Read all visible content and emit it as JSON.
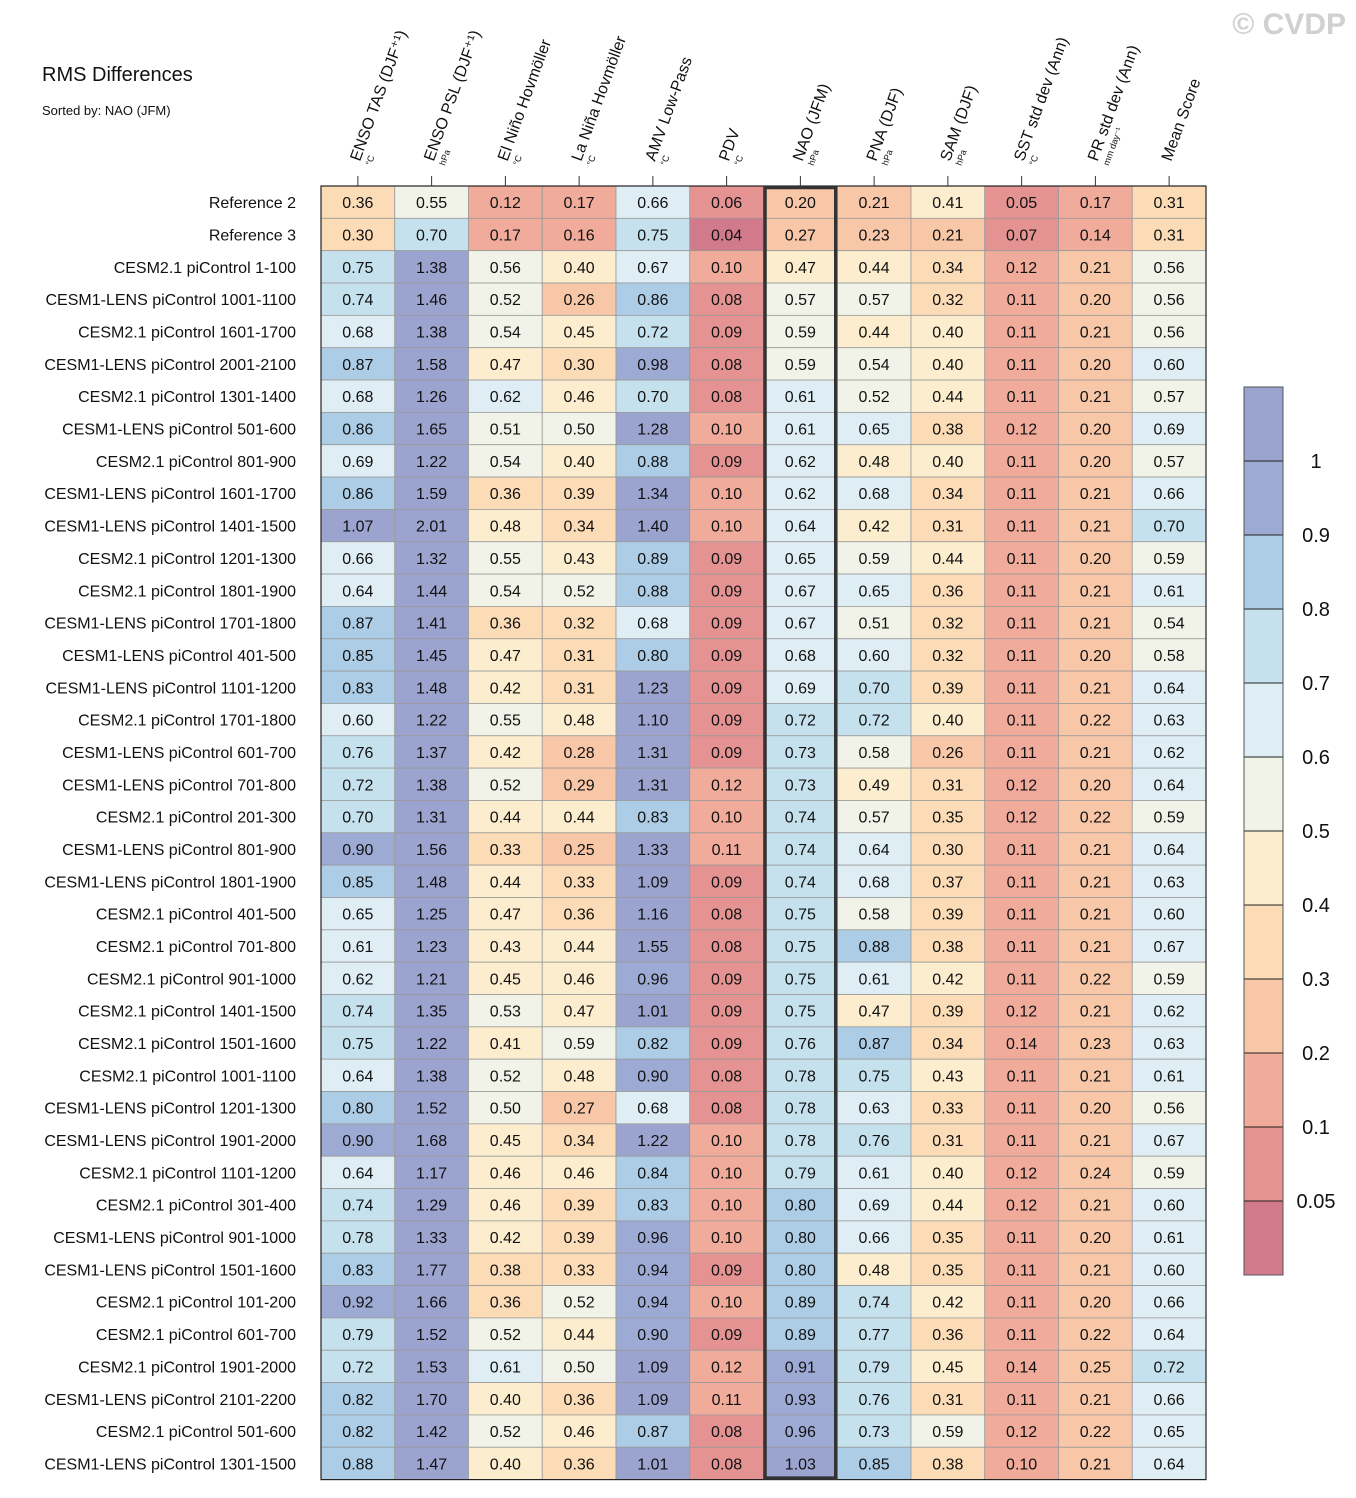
{
  "chart_data": {
    "type": "heatmap",
    "title": "RMS Differences",
    "subtitle": "Sorted by: NAO (JFM)",
    "watermark": "© CVDP",
    "highlight_column": 6,
    "columns": [
      {
        "label": "ENSO TAS (DJF⁺¹)",
        "unit": "°C"
      },
      {
        "label": "ENSO PSL (DJF⁺¹)",
        "unit": "hPa"
      },
      {
        "label": "El Niño Hovmöller",
        "unit": "°C"
      },
      {
        "label": "La Niña Hovmöller",
        "unit": "°C"
      },
      {
        "label": "AMV Low-Pass",
        "unit": "°C"
      },
      {
        "label": "PDV",
        "unit": "°C"
      },
      {
        "label": "NAO (JFM)",
        "unit": "hPa"
      },
      {
        "label": "PNA (DJF)",
        "unit": "hPa"
      },
      {
        "label": "SAM (DJF)",
        "unit": "hPa"
      },
      {
        "label": "SST std dev (Ann)",
        "unit": "°C"
      },
      {
        "label": "PR std dev (Ann)",
        "unit": "mm day⁻¹"
      },
      {
        "label": "Mean Score",
        "unit": ""
      }
    ],
    "rows": [
      {
        "name": "Reference 2",
        "values": [
          0.36,
          0.55,
          0.12,
          0.17,
          0.66,
          0.06,
          0.2,
          0.21,
          0.41,
          0.05,
          0.17,
          0.31
        ]
      },
      {
        "name": "Reference 3",
        "values": [
          0.3,
          0.7,
          0.17,
          0.16,
          0.75,
          0.04,
          0.27,
          0.23,
          0.21,
          0.07,
          0.14,
          0.31
        ]
      },
      {
        "name": "CESM2.1 piControl 1-100",
        "values": [
          0.75,
          1.38,
          0.56,
          0.4,
          0.67,
          0.1,
          0.47,
          0.44,
          0.34,
          0.12,
          0.21,
          0.56
        ]
      },
      {
        "name": "CESM1-LENS piControl 1001-1100",
        "values": [
          0.74,
          1.46,
          0.52,
          0.26,
          0.86,
          0.08,
          0.57,
          0.57,
          0.32,
          0.11,
          0.2,
          0.56
        ]
      },
      {
        "name": "CESM2.1 piControl 1601-1700",
        "values": [
          0.68,
          1.38,
          0.54,
          0.45,
          0.72,
          0.09,
          0.59,
          0.44,
          0.4,
          0.11,
          0.21,
          0.56
        ]
      },
      {
        "name": "CESM1-LENS piControl 2001-2100",
        "values": [
          0.87,
          1.58,
          0.47,
          0.3,
          0.98,
          0.08,
          0.59,
          0.54,
          0.4,
          0.11,
          0.2,
          0.6
        ]
      },
      {
        "name": "CESM2.1 piControl 1301-1400",
        "values": [
          0.68,
          1.26,
          0.62,
          0.46,
          0.7,
          0.08,
          0.61,
          0.52,
          0.44,
          0.11,
          0.21,
          0.57
        ]
      },
      {
        "name": "CESM1-LENS piControl 501-600",
        "values": [
          0.86,
          1.65,
          0.51,
          0.5,
          1.28,
          0.1,
          0.61,
          0.65,
          0.38,
          0.12,
          0.2,
          0.69
        ]
      },
      {
        "name": "CESM2.1 piControl 801-900",
        "values": [
          0.69,
          1.22,
          0.54,
          0.4,
          0.88,
          0.09,
          0.62,
          0.48,
          0.4,
          0.11,
          0.2,
          0.57
        ]
      },
      {
        "name": "CESM1-LENS piControl 1601-1700",
        "values": [
          0.86,
          1.59,
          0.36,
          0.39,
          1.34,
          0.1,
          0.62,
          0.68,
          0.34,
          0.11,
          0.21,
          0.66
        ]
      },
      {
        "name": "CESM1-LENS piControl 1401-1500",
        "values": [
          1.07,
          2.01,
          0.48,
          0.34,
          1.4,
          0.1,
          0.64,
          0.42,
          0.31,
          0.11,
          0.21,
          0.7
        ]
      },
      {
        "name": "CESM2.1 piControl 1201-1300",
        "values": [
          0.66,
          1.32,
          0.55,
          0.43,
          0.89,
          0.09,
          0.65,
          0.59,
          0.44,
          0.11,
          0.2,
          0.59
        ]
      },
      {
        "name": "CESM2.1 piControl 1801-1900",
        "values": [
          0.64,
          1.44,
          0.54,
          0.52,
          0.88,
          0.09,
          0.67,
          0.65,
          0.36,
          0.11,
          0.21,
          0.61
        ]
      },
      {
        "name": "CESM1-LENS piControl 1701-1800",
        "values": [
          0.87,
          1.41,
          0.36,
          0.32,
          0.68,
          0.09,
          0.67,
          0.51,
          0.32,
          0.11,
          0.21,
          0.54
        ]
      },
      {
        "name": "CESM1-LENS piControl 401-500",
        "values": [
          0.85,
          1.45,
          0.47,
          0.31,
          0.8,
          0.09,
          0.68,
          0.6,
          0.32,
          0.11,
          0.2,
          0.58
        ]
      },
      {
        "name": "CESM1-LENS piControl 1101-1200",
        "values": [
          0.83,
          1.48,
          0.42,
          0.31,
          1.23,
          0.09,
          0.69,
          0.7,
          0.39,
          0.11,
          0.21,
          0.64
        ]
      },
      {
        "name": "CESM2.1 piControl 1701-1800",
        "values": [
          0.6,
          1.22,
          0.55,
          0.48,
          1.1,
          0.09,
          0.72,
          0.72,
          0.4,
          0.11,
          0.22,
          0.63
        ]
      },
      {
        "name": "CESM1-LENS piControl 601-700",
        "values": [
          0.76,
          1.37,
          0.42,
          0.28,
          1.31,
          0.09,
          0.73,
          0.58,
          0.26,
          0.11,
          0.21,
          0.62
        ]
      },
      {
        "name": "CESM1-LENS piControl 701-800",
        "values": [
          0.72,
          1.38,
          0.52,
          0.29,
          1.31,
          0.12,
          0.73,
          0.49,
          0.31,
          0.12,
          0.2,
          0.64
        ]
      },
      {
        "name": "CESM2.1 piControl 201-300",
        "values": [
          0.7,
          1.31,
          0.44,
          0.44,
          0.83,
          0.1,
          0.74,
          0.57,
          0.35,
          0.12,
          0.22,
          0.59
        ]
      },
      {
        "name": "CESM1-LENS piControl 801-900",
        "values": [
          0.9,
          1.56,
          0.33,
          0.25,
          1.33,
          0.11,
          0.74,
          0.64,
          0.3,
          0.11,
          0.21,
          0.64
        ]
      },
      {
        "name": "CESM1-LENS piControl 1801-1900",
        "values": [
          0.85,
          1.48,
          0.44,
          0.33,
          1.09,
          0.09,
          0.74,
          0.68,
          0.37,
          0.11,
          0.21,
          0.63
        ]
      },
      {
        "name": "CESM2.1 piControl 401-500",
        "values": [
          0.65,
          1.25,
          0.47,
          0.36,
          1.16,
          0.08,
          0.75,
          0.58,
          0.39,
          0.11,
          0.21,
          0.6
        ]
      },
      {
        "name": "CESM2.1 piControl 701-800",
        "values": [
          0.61,
          1.23,
          0.43,
          0.44,
          1.55,
          0.08,
          0.75,
          0.88,
          0.38,
          0.11,
          0.21,
          0.67
        ]
      },
      {
        "name": "CESM2.1 piControl 901-1000",
        "values": [
          0.62,
          1.21,
          0.45,
          0.46,
          0.96,
          0.09,
          0.75,
          0.61,
          0.42,
          0.11,
          0.22,
          0.59
        ]
      },
      {
        "name": "CESM2.1 piControl 1401-1500",
        "values": [
          0.74,
          1.35,
          0.53,
          0.47,
          1.01,
          0.09,
          0.75,
          0.47,
          0.39,
          0.12,
          0.21,
          0.62
        ]
      },
      {
        "name": "CESM2.1 piControl 1501-1600",
        "values": [
          0.75,
          1.22,
          0.41,
          0.59,
          0.82,
          0.09,
          0.76,
          0.87,
          0.34,
          0.14,
          0.23,
          0.63
        ]
      },
      {
        "name": "CESM2.1 piControl 1001-1100",
        "values": [
          0.64,
          1.38,
          0.52,
          0.48,
          0.9,
          0.08,
          0.78,
          0.75,
          0.43,
          0.11,
          0.21,
          0.61
        ]
      },
      {
        "name": "CESM1-LENS piControl 1201-1300",
        "values": [
          0.8,
          1.52,
          0.5,
          0.27,
          0.68,
          0.08,
          0.78,
          0.63,
          0.33,
          0.11,
          0.2,
          0.56
        ]
      },
      {
        "name": "CESM1-LENS piControl 1901-2000",
        "values": [
          0.9,
          1.68,
          0.45,
          0.34,
          1.22,
          0.1,
          0.78,
          0.76,
          0.31,
          0.11,
          0.21,
          0.67
        ]
      },
      {
        "name": "CESM2.1 piControl 1101-1200",
        "values": [
          0.64,
          1.17,
          0.46,
          0.46,
          0.84,
          0.1,
          0.79,
          0.61,
          0.4,
          0.12,
          0.24,
          0.59
        ]
      },
      {
        "name": "CESM2.1 piControl 301-400",
        "values": [
          0.74,
          1.29,
          0.46,
          0.39,
          0.83,
          0.1,
          0.8,
          0.69,
          0.44,
          0.12,
          0.21,
          0.6
        ]
      },
      {
        "name": "CESM1-LENS piControl 901-1000",
        "values": [
          0.78,
          1.33,
          0.42,
          0.39,
          0.96,
          0.1,
          0.8,
          0.66,
          0.35,
          0.11,
          0.2,
          0.61
        ]
      },
      {
        "name": "CESM1-LENS piControl 1501-1600",
        "values": [
          0.83,
          1.77,
          0.38,
          0.33,
          0.94,
          0.09,
          0.8,
          0.48,
          0.35,
          0.11,
          0.21,
          0.6
        ]
      },
      {
        "name": "CESM2.1 piControl 101-200",
        "values": [
          0.92,
          1.66,
          0.36,
          0.52,
          0.94,
          0.1,
          0.89,
          0.74,
          0.42,
          0.11,
          0.2,
          0.66
        ]
      },
      {
        "name": "CESM2.1 piControl 601-700",
        "values": [
          0.79,
          1.52,
          0.52,
          0.44,
          0.9,
          0.09,
          0.89,
          0.77,
          0.36,
          0.11,
          0.22,
          0.64
        ]
      },
      {
        "name": "CESM2.1 piControl 1901-2000",
        "values": [
          0.72,
          1.53,
          0.61,
          0.5,
          1.09,
          0.12,
          0.91,
          0.79,
          0.45,
          0.14,
          0.25,
          0.72
        ]
      },
      {
        "name": "CESM1-LENS piControl 2101-2200",
        "values": [
          0.82,
          1.7,
          0.4,
          0.36,
          1.09,
          0.11,
          0.93,
          0.76,
          0.31,
          0.11,
          0.21,
          0.66
        ]
      },
      {
        "name": "CESM2.1 piControl 501-600",
        "values": [
          0.82,
          1.42,
          0.52,
          0.46,
          0.87,
          0.08,
          0.96,
          0.73,
          0.59,
          0.12,
          0.22,
          0.65
        ]
      },
      {
        "name": "CESM1-LENS piControl 1301-1500",
        "values": [
          0.88,
          1.47,
          0.4,
          0.36,
          1.01,
          0.08,
          1.03,
          0.85,
          0.38,
          0.1,
          0.21,
          0.64
        ]
      }
    ],
    "colorbar": {
      "levels": [
        0.05,
        0.1,
        0.2,
        0.3,
        0.4,
        0.5,
        0.6,
        0.7,
        0.8,
        0.9,
        1
      ],
      "tick_labels": [
        "0.05",
        "0.1",
        "0.2",
        "0.3",
        "0.4",
        "0.5",
        "0.6",
        "0.7",
        "0.8",
        "0.9",
        "1"
      ],
      "colors": [
        "#d17a8c",
        "#e49292",
        "#f1ab9b",
        "#f8c7a8",
        "#fbdcb6",
        "#fbedcd",
        "#f1f3e8",
        "#dfeef4",
        "#c6e1ee",
        "#adcde6",
        "#9daad3",
        "#9ba4cf"
      ]
    }
  }
}
